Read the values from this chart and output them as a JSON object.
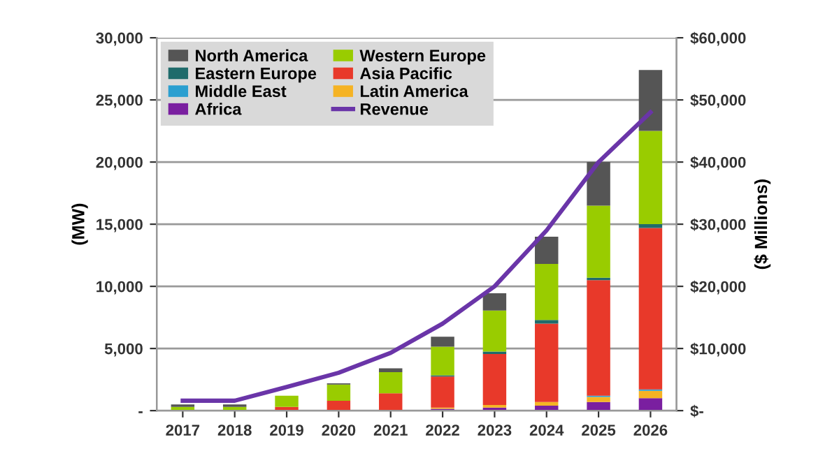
{
  "chart_data": {
    "type": "bar",
    "stacked": true,
    "categories": [
      "2017",
      "2018",
      "2019",
      "2020",
      "2021",
      "2022",
      "2023",
      "2024",
      "2025",
      "2026"
    ],
    "ylabel": "(MW)",
    "y2label": "($ Millions)",
    "ylim": [
      0,
      30000
    ],
    "yticks": [
      {
        "value": 0,
        "label": "-"
      },
      {
        "value": 5000,
        "label": "5,000"
      },
      {
        "value": 10000,
        "label": "10,000"
      },
      {
        "value": 15000,
        "label": "15,000"
      },
      {
        "value": 20000,
        "label": "20,000"
      },
      {
        "value": 25000,
        "label": "25,000"
      },
      {
        "value": 30000,
        "label": "30,000"
      }
    ],
    "y2lim": [
      0,
      60000
    ],
    "y2ticks": [
      {
        "value": 0,
        "label": "$-"
      },
      {
        "value": 10000,
        "label": "$10,000"
      },
      {
        "value": 20000,
        "label": "$20,000"
      },
      {
        "value": 30000,
        "label": "$30,000"
      },
      {
        "value": 40000,
        "label": "$40,000"
      },
      {
        "value": 50000,
        "label": "$50,000"
      },
      {
        "value": 60000,
        "label": "$60,000"
      }
    ],
    "grid": "y",
    "legend": "top left",
    "series": [
      {
        "name": "Africa",
        "color": "#7a1fa0",
        "values": [
          null,
          null,
          null,
          null,
          null,
          150,
          250,
          400,
          700,
          1000
        ]
      },
      {
        "name": "Latin America",
        "color": "#f5b324",
        "values": [
          null,
          null,
          null,
          null,
          null,
          100,
          200,
          300,
          400,
          600
        ]
      },
      {
        "name": "Middle East",
        "color": "#2b9fd0",
        "values": [
          null,
          null,
          null,
          null,
          null,
          null,
          null,
          null,
          100,
          100
        ]
      },
      {
        "name": "Asia Pacific",
        "color": "#e8392a",
        "values": [
          null,
          null,
          300,
          800,
          1400,
          2500,
          4100,
          6300,
          9300,
          13000
        ]
      },
      {
        "name": "Eastern Europe",
        "color": "#1f6b6b",
        "values": [
          null,
          null,
          null,
          null,
          null,
          100,
          200,
          300,
          200,
          300
        ]
      },
      {
        "name": "Western Europe",
        "color": "#99cc00",
        "values": [
          300,
          300,
          900,
          1300,
          1700,
          2300,
          3300,
          4500,
          5800,
          7500
        ]
      },
      {
        "name": "North America",
        "color": "#555555",
        "values": [
          200,
          200,
          null,
          100,
          300,
          800,
          1400,
          2200,
          3500,
          4900
        ]
      },
      {
        "name": "Revenue",
        "type": "line",
        "axis": "y2",
        "color": "#6a35a8",
        "values": [
          1600,
          1600,
          3800,
          6100,
          9300,
          14000,
          20000,
          29000,
          40000,
          48000
        ]
      }
    ]
  }
}
